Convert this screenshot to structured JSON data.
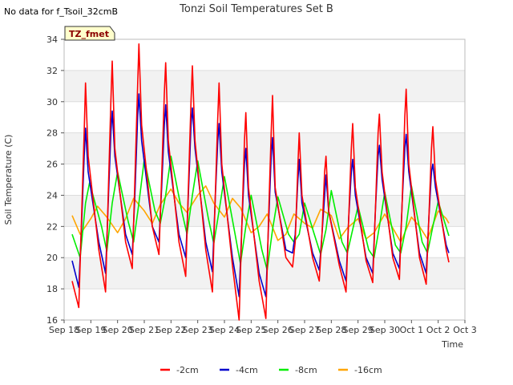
{
  "header": {
    "no_data_note": "No data for f_Tsoil_32cmB",
    "title": "Tonzi Soil Temperatures Set B"
  },
  "badge": {
    "label": "TZ_fmet"
  },
  "chart_data": {
    "type": "line",
    "title": "Tonzi Soil Temperatures Set B",
    "xlabel": "Time",
    "ylabel": "Soil Temperature (C)",
    "ylim": [
      16,
      34
    ],
    "yticks": [
      16,
      18,
      20,
      22,
      24,
      26,
      28,
      30,
      32,
      34
    ],
    "xlim": [
      0,
      15
    ],
    "xticks": [
      {
        "x": 0,
        "label": "Sep 18"
      },
      {
        "x": 1,
        "label": "Sep 19"
      },
      {
        "x": 2,
        "label": "Sep 20"
      },
      {
        "x": 3,
        "label": "Sep 21"
      },
      {
        "x": 4,
        "label": "Sep 22"
      },
      {
        "x": 5,
        "label": "Sep 23"
      },
      {
        "x": 6,
        "label": "Sep 24"
      },
      {
        "x": 7,
        "label": "Sep 25"
      },
      {
        "x": 8,
        "label": "Sep 26"
      },
      {
        "x": 9,
        "label": "Sep 27"
      },
      {
        "x": 10,
        "label": "Sep 28"
      },
      {
        "x": 11,
        "label": "Sep 29"
      },
      {
        "x": 12,
        "label": "Sep 30"
      },
      {
        "x": 13,
        "label": "Oct 1"
      },
      {
        "x": 14,
        "label": "Oct 2"
      },
      {
        "x": 15,
        "label": "Oct 3"
      }
    ],
    "grid": true,
    "legend_position": "bottom",
    "series": [
      {
        "name": "-2cm",
        "color": "#ff0000",
        "x": [
          0.3,
          0.55,
          0.65,
          0.75,
          0.8,
          0.9,
          1.3,
          1.55,
          1.65,
          1.75,
          1.8,
          1.9,
          2.3,
          2.55,
          2.65,
          2.75,
          2.8,
          2.9,
          3.3,
          3.55,
          3.65,
          3.75,
          3.8,
          3.9,
          4.3,
          4.55,
          4.65,
          4.75,
          4.8,
          4.9,
          5.3,
          5.55,
          5.65,
          5.75,
          5.8,
          5.9,
          6.3,
          6.55,
          6.65,
          6.75,
          6.8,
          6.9,
          7.3,
          7.55,
          7.65,
          7.75,
          7.8,
          7.9,
          8.3,
          8.55,
          8.65,
          8.75,
          8.8,
          8.9,
          9.3,
          9.55,
          9.65,
          9.75,
          9.8,
          9.9,
          10.3,
          10.55,
          10.65,
          10.75,
          10.8,
          10.9,
          11.3,
          11.55,
          11.65,
          11.75,
          11.8,
          11.9,
          12.3,
          12.55,
          12.65,
          12.75,
          12.8,
          12.9,
          13.3,
          13.55,
          13.65,
          13.75,
          13.8,
          13.9,
          14.3,
          14.4
        ],
        "y": [
          18.5,
          16.8,
          22.5,
          28.0,
          31.2,
          26.5,
          20.5,
          17.8,
          24.0,
          30.0,
          32.6,
          27.0,
          21.0,
          19.3,
          25.0,
          31.0,
          33.7,
          28.5,
          22.0,
          20.2,
          25.2,
          30.5,
          32.5,
          27.5,
          21.0,
          18.8,
          24.5,
          30.0,
          32.3,
          27.5,
          20.5,
          17.8,
          23.5,
          29.0,
          31.2,
          26.0,
          19.5,
          16.0,
          22.0,
          27.5,
          29.3,
          24.5,
          18.5,
          16.1,
          22.5,
          28.0,
          30.4,
          24.5,
          20.0,
          19.4,
          21.0,
          26.0,
          28.0,
          24.0,
          20.0,
          18.5,
          21.5,
          25.5,
          26.5,
          23.0,
          19.5,
          17.8,
          22.5,
          27.0,
          28.6,
          24.5,
          19.8,
          18.4,
          23.0,
          28.0,
          29.2,
          25.5,
          20.0,
          18.6,
          23.5,
          29.0,
          30.8,
          26.0,
          20.0,
          18.3,
          22.5,
          27.0,
          28.4,
          25.0,
          20.5,
          19.7
        ]
      },
      {
        "name": "-4cm",
        "color": "#0000cc",
        "x": [
          0.3,
          0.55,
          0.65,
          0.75,
          0.8,
          0.9,
          1.3,
          1.55,
          1.65,
          1.75,
          1.8,
          1.9,
          2.3,
          2.55,
          2.65,
          2.75,
          2.8,
          2.9,
          3.3,
          3.55,
          3.65,
          3.75,
          3.8,
          3.9,
          4.3,
          4.55,
          4.65,
          4.75,
          4.8,
          4.9,
          5.3,
          5.55,
          5.65,
          5.75,
          5.8,
          5.9,
          6.3,
          6.55,
          6.65,
          6.75,
          6.8,
          6.9,
          7.3,
          7.55,
          7.65,
          7.75,
          7.8,
          7.9,
          8.3,
          8.55,
          8.65,
          8.75,
          8.8,
          8.9,
          9.3,
          9.55,
          9.65,
          9.75,
          9.8,
          9.9,
          10.3,
          10.55,
          10.65,
          10.75,
          10.8,
          10.9,
          11.3,
          11.55,
          11.65,
          11.75,
          11.8,
          11.9,
          12.3,
          12.55,
          12.65,
          12.75,
          12.8,
          12.9,
          13.3,
          13.55,
          13.65,
          13.75,
          13.8,
          13.9,
          14.3,
          14.4
        ],
        "y": [
          19.8,
          18.1,
          22.0,
          26.5,
          28.3,
          25.5,
          21.0,
          19.0,
          23.5,
          28.0,
          29.4,
          26.5,
          21.5,
          20.2,
          24.0,
          29.0,
          30.5,
          27.5,
          22.0,
          21.0,
          24.5,
          28.5,
          29.8,
          26.8,
          21.5,
          20.0,
          24.0,
          28.5,
          29.6,
          27.0,
          21.0,
          19.1,
          23.5,
          27.5,
          28.6,
          25.5,
          20.0,
          17.5,
          22.0,
          26.0,
          27.0,
          24.0,
          19.0,
          17.5,
          22.0,
          26.5,
          27.7,
          24.2,
          20.5,
          20.3,
          21.5,
          25.0,
          26.3,
          23.5,
          20.3,
          19.2,
          21.5,
          24.0,
          25.3,
          23.0,
          19.8,
          18.5,
          22.5,
          25.5,
          26.3,
          24.0,
          20.0,
          19.0,
          23.0,
          26.5,
          27.2,
          25.0,
          20.3,
          19.3,
          23.5,
          27.0,
          27.9,
          25.5,
          20.3,
          19.0,
          22.5,
          25.5,
          26.0,
          24.5,
          20.8,
          20.3
        ]
      },
      {
        "name": "-8cm",
        "color": "#00ee00",
        "x": [
          0.3,
          0.6,
          0.8,
          0.95,
          1.4,
          1.6,
          1.8,
          2.0,
          2.4,
          2.6,
          2.8,
          3.0,
          3.4,
          3.6,
          3.8,
          4.0,
          4.4,
          4.6,
          4.8,
          5.0,
          5.4,
          5.6,
          5.8,
          6.0,
          6.4,
          6.6,
          6.8,
          7.0,
          7.4,
          7.6,
          7.8,
          8.0,
          8.4,
          8.6,
          8.8,
          9.0,
          9.4,
          9.6,
          9.8,
          10.0,
          10.4,
          10.6,
          10.8,
          11.0,
          11.4,
          11.6,
          11.8,
          12.0,
          12.4,
          12.6,
          12.8,
          13.0,
          13.4,
          13.6,
          13.8,
          14.0,
          14.4
        ],
        "y": [
          21.5,
          20.0,
          23.5,
          24.8,
          22.0,
          20.4,
          23.5,
          25.5,
          22.3,
          21.0,
          23.5,
          26.3,
          23.0,
          22.2,
          24.0,
          26.5,
          23.0,
          21.5,
          24.0,
          26.2,
          22.5,
          20.9,
          23.0,
          25.2,
          21.5,
          19.6,
          22.0,
          24.0,
          20.5,
          19.2,
          21.8,
          23.9,
          21.5,
          21.0,
          21.5,
          23.5,
          21.3,
          20.2,
          21.8,
          24.3,
          21.0,
          20.3,
          21.8,
          23.3,
          20.5,
          20.0,
          22.0,
          24.2,
          20.8,
          20.3,
          22.0,
          24.6,
          21.0,
          20.3,
          22.0,
          23.6,
          21.4
        ]
      },
      {
        "name": "-16cm",
        "color": "#ffa500",
        "x": [
          0.3,
          0.6,
          1.0,
          1.25,
          1.6,
          2.0,
          2.3,
          2.6,
          3.0,
          3.3,
          3.6,
          4.0,
          4.3,
          4.6,
          5.0,
          5.3,
          5.6,
          6.0,
          6.3,
          6.6,
          7.0,
          7.3,
          7.6,
          8.0,
          8.3,
          8.6,
          9.0,
          9.3,
          9.6,
          10.0,
          10.3,
          10.6,
          11.0,
          11.3,
          11.6,
          12.0,
          12.3,
          12.6,
          13.0,
          13.3,
          13.6,
          14.0,
          14.3,
          14.4
        ],
        "y": [
          22.7,
          21.5,
          22.5,
          23.3,
          22.6,
          21.6,
          22.5,
          23.8,
          23.0,
          22.2,
          23.4,
          24.4,
          23.5,
          22.9,
          24.0,
          24.6,
          23.5,
          22.6,
          23.8,
          23.2,
          21.6,
          22.0,
          22.8,
          21.1,
          21.5,
          22.8,
          22.2,
          21.9,
          23.1,
          22.7,
          21.2,
          21.9,
          22.5,
          21.2,
          21.6,
          22.8,
          21.9,
          21.0,
          22.6,
          22.0,
          21.2,
          23.0,
          22.5,
          22.2
        ]
      }
    ]
  }
}
